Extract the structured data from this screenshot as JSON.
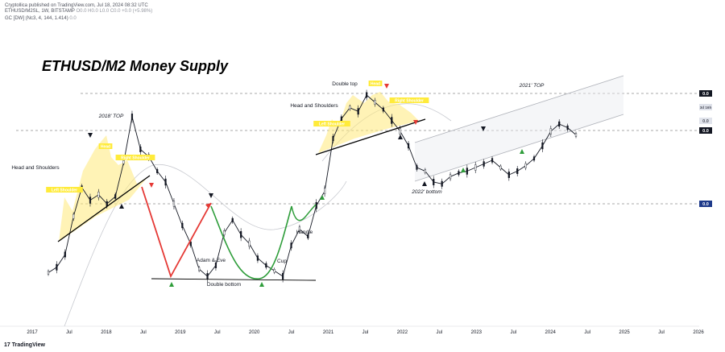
{
  "header": {
    "published_line": "Cryptollica published on TradingView.com, Jul 18, 2024 08:32 UTC",
    "symbol_line": "ETHUSD/M2SL, 1W, BITSTAMP",
    "ohlc_values": "O0.0 H0.0 L0.0 C0.0 +0.0 (+5.98%)",
    "indicator_line": "GC [DW] (Nc3, 4, 144, 1.414)",
    "indicator_value": "0.0"
  },
  "footer": {
    "brand": "TradingView",
    "logo_glyph": "17"
  },
  "chart_data": {
    "type": "line",
    "title": "ETHUSD/M2 Money Supply",
    "x_axis_ticks": [
      "2017",
      "Jul",
      "2018",
      "Jul",
      "2019",
      "Jul",
      "2020",
      "Jul",
      "2021",
      "Jul",
      "2022",
      "Jul",
      "2023",
      "Jul",
      "2024",
      "Jul",
      "2025",
      "Jul",
      "2026"
    ],
    "x_range": [
      "2017-01",
      "2026-06"
    ],
    "price_labels": [
      "0.0",
      "3d 16h",
      "0.0",
      "0.0",
      "0.0"
    ],
    "series": [
      {
        "values_norm": [
          0.02,
          0.05,
          0.12,
          0.33,
          0.49,
          0.42,
          0.45,
          0.4,
          0.44,
          0.63,
          0.88,
          0.7,
          0.66,
          0.58,
          0.52,
          0.4,
          0.28,
          0.18,
          0.04,
          0.0,
          0.06,
          0.24,
          0.31,
          0.23,
          0.18,
          0.1,
          0.06,
          0.03,
          0.0,
          0.17,
          0.26,
          0.22,
          0.39,
          0.47,
          0.76,
          0.87,
          0.93,
          0.91,
          1.0,
          0.96,
          0.92,
          0.86,
          0.8,
          0.72,
          0.6,
          0.58,
          0.52,
          0.51,
          0.55,
          0.57,
          0.58,
          0.6,
          0.62,
          0.64,
          0.6,
          0.56,
          0.58,
          0.61,
          0.65,
          0.72,
          0.8,
          0.84,
          0.82,
          0.78
        ]
      }
    ],
    "annotations": [
      {
        "text": "2018' TOP",
        "type": "label"
      },
      {
        "text": "Head and Shoulders",
        "type": "label"
      },
      {
        "text": "Left Shoulder",
        "type": "tag"
      },
      {
        "text": "Head",
        "type": "tag"
      },
      {
        "text": "Right Shoulder",
        "type": "tag"
      },
      {
        "text": "Adam & Eve",
        "type": "label"
      },
      {
        "text": "Double bottom",
        "type": "label"
      },
      {
        "text": "Cup",
        "type": "label"
      },
      {
        "text": "Handle",
        "type": "label"
      },
      {
        "text": "Double top",
        "type": "label"
      },
      {
        "text": "Head and Shoulders",
        "type": "label"
      },
      {
        "text": "Left Shoulder",
        "type": "tag"
      },
      {
        "text": "Head",
        "type": "tag"
      },
      {
        "text": "Right Shoulder",
        "type": "tag"
      },
      {
        "text": "2022' bottom",
        "type": "label"
      },
      {
        "text": "2021' TOP",
        "type": "label"
      }
    ],
    "colors": {
      "candle": "#131722",
      "neckline": "#000000",
      "shoulder_fill": "#ffe97a",
      "cup": "#2e9d3a",
      "adam": "#e53935",
      "tag_bg": "#ffeb3b",
      "price_tag": "#131722",
      "price_tag_blue": "#1e3a8a",
      "channel": "#b0b3ba",
      "grid_dash": "#555555"
    },
    "grid": false
  }
}
